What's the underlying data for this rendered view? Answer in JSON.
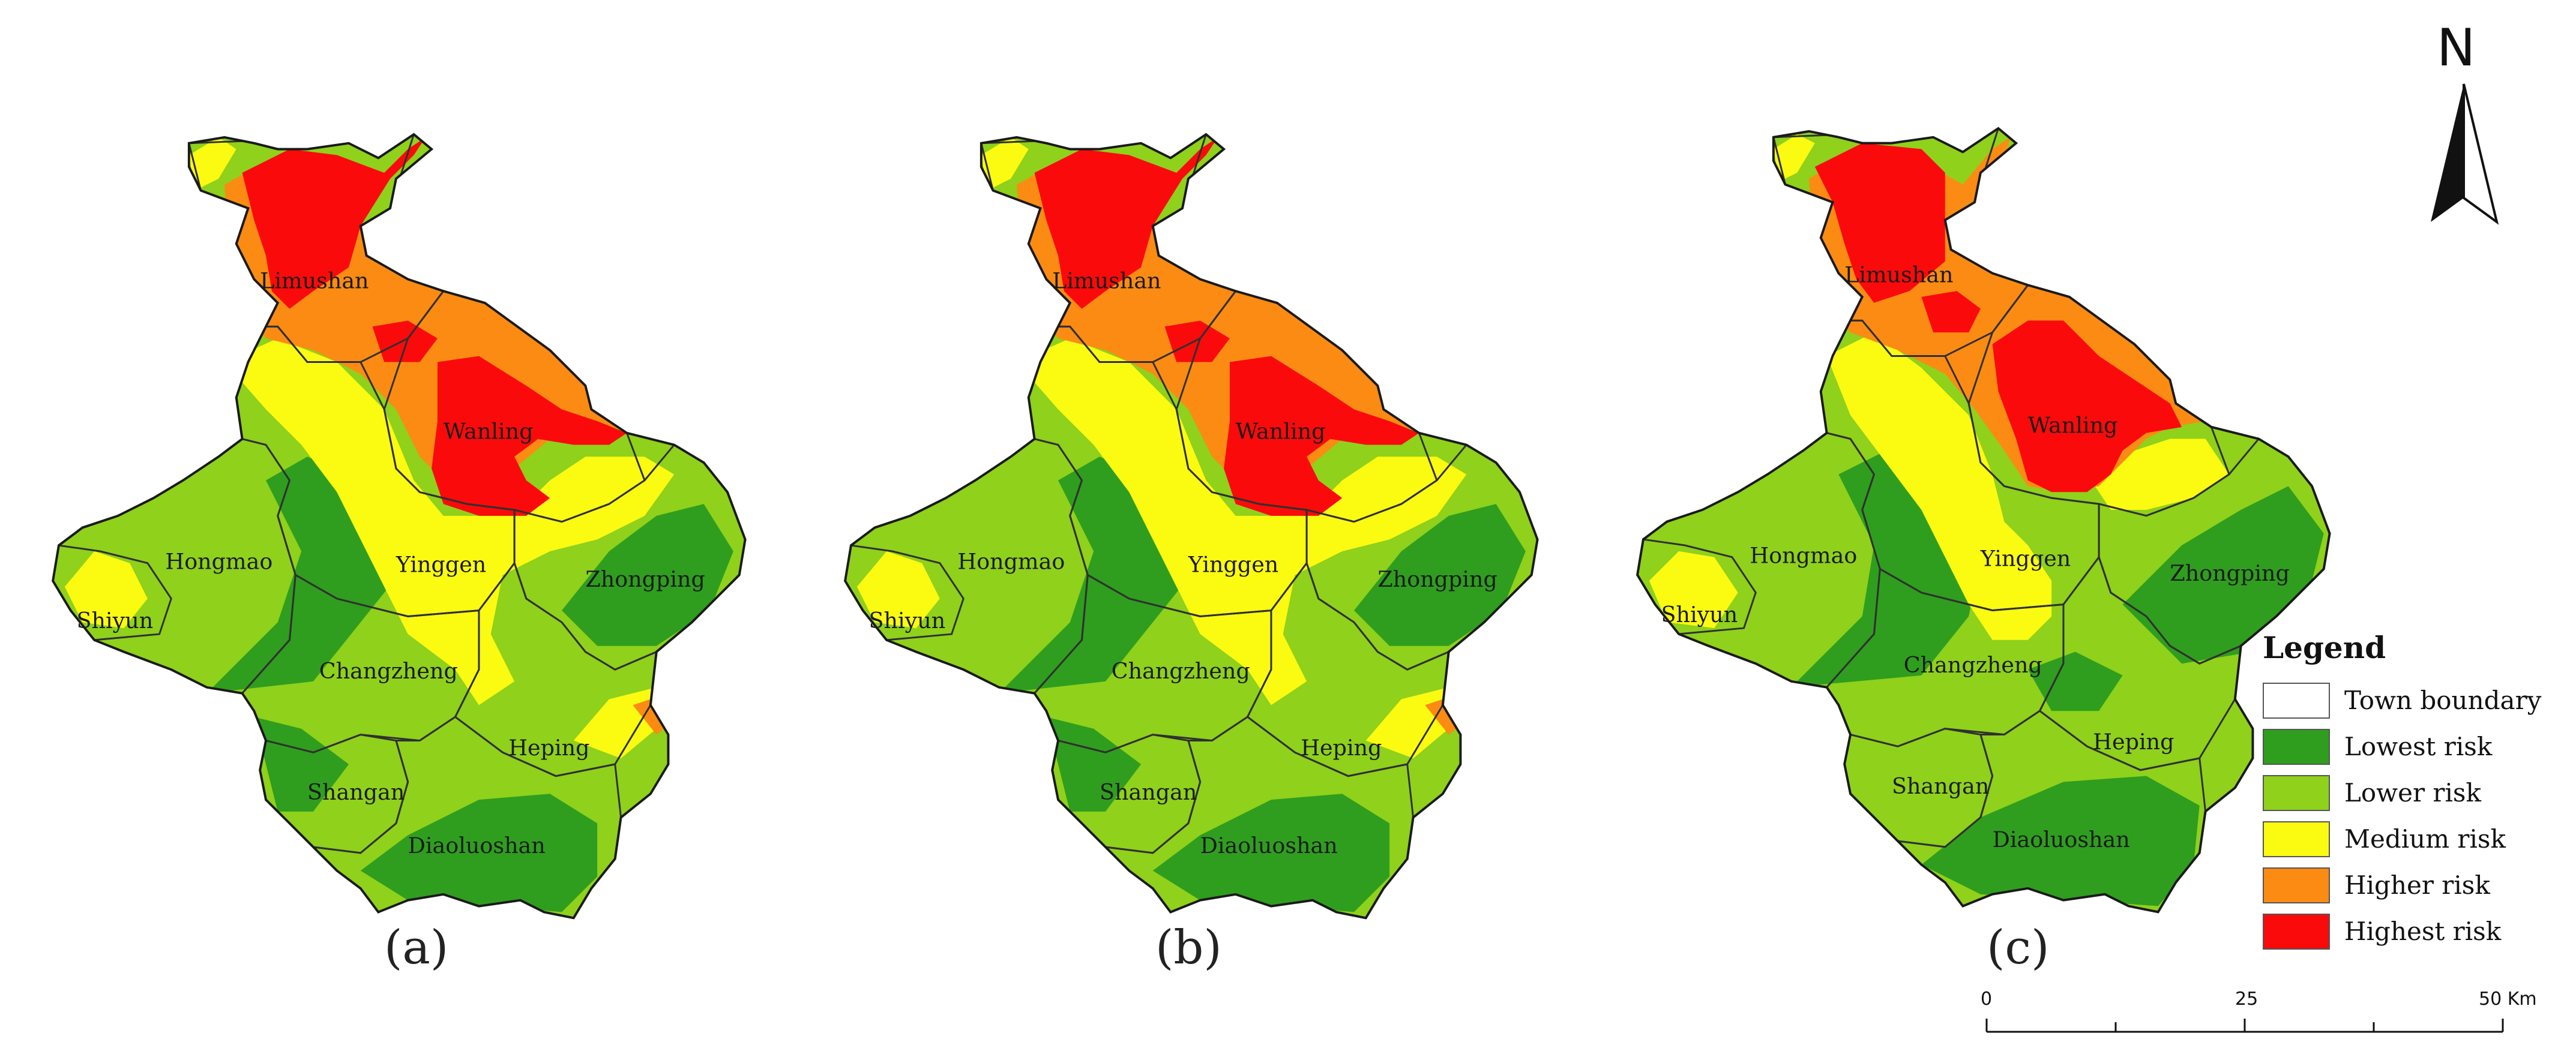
{
  "colors": {
    "lowest": "#2f9e1e",
    "lower": "#8fd11b",
    "medium": "#fbfb12",
    "higher": "#fb8b13",
    "highest": "#fa0a0a",
    "boundary": "#303030"
  },
  "panels": [
    {
      "label": "(a)",
      "towns": [
        "Limushan",
        "Wanling",
        "Hongmao",
        "Yinggen",
        "Zhongping",
        "Shiyun",
        "Changzheng",
        "Heping",
        "Shangan",
        "Diaoluoshan"
      ]
    },
    {
      "label": "(b)",
      "towns": [
        "Limushan",
        "Wanling",
        "Hongmao",
        "Yinggen",
        "Zhongping",
        "Shiyun",
        "Changzheng",
        "Heping",
        "Shangan",
        "Diaoluoshan"
      ]
    },
    {
      "label": "(c)",
      "towns": [
        "Limushan",
        "Wanling",
        "Hongmao",
        "Yinggen",
        "Zhongping",
        "Shiyun",
        "Changzheng",
        "Heping",
        "Shangan",
        "Diaoluoshan"
      ]
    }
  ],
  "north_arrow": {
    "label": "N",
    "icon": "north-arrow-icon"
  },
  "legend": {
    "title": "Legend",
    "items": [
      {
        "label": "Town boundary",
        "color": "#ffffff"
      },
      {
        "label": "Lowest risk",
        "color": "#2f9e1e"
      },
      {
        "label": "Lower risk",
        "color": "#8fd11b"
      },
      {
        "label": "Medium risk",
        "color": "#fbfb12"
      },
      {
        "label": "Higher risk",
        "color": "#fb8b13"
      },
      {
        "label": "Highest risk",
        "color": "#fa0a0a"
      }
    ]
  },
  "scale_bar": {
    "ticks": [
      "0",
      "25",
      "50 Km"
    ]
  }
}
